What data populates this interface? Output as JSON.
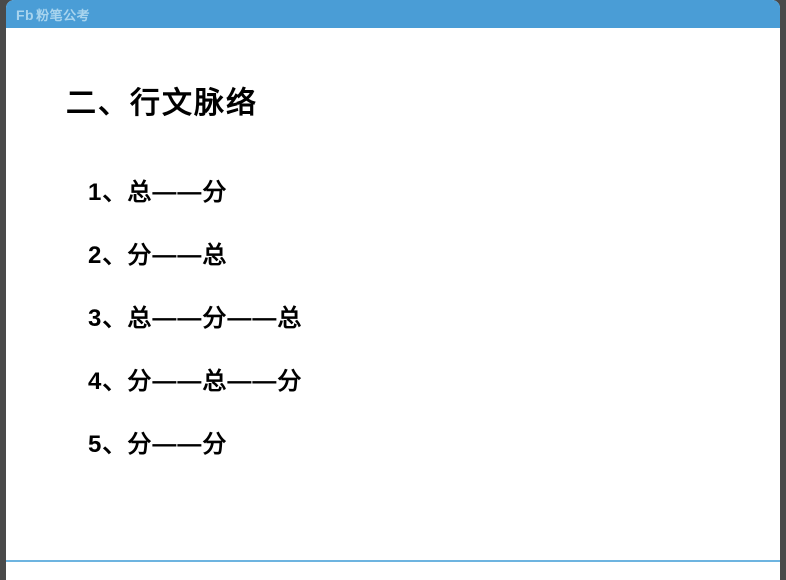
{
  "header": {
    "logo_icon": "Fb",
    "logo_text": "粉笔公考"
  },
  "content": {
    "section_title": "二、行文脉络",
    "items": [
      "1、总——分",
      "2、分——总",
      "3、总——分——总",
      "4、分——总——分",
      "5、分——分"
    ]
  },
  "styling": {
    "header_bg": "#4a9dd6",
    "logo_color": "#a8d4ee",
    "page_bg": "#ffffff",
    "body_bg": "#4a4a4a",
    "text_color": "#000000",
    "bottom_line_color": "#6db4e0",
    "title_fontsize": 30,
    "item_fontsize": 24
  }
}
